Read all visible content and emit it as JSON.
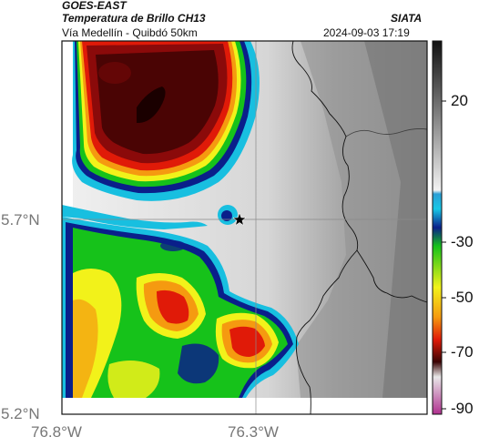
{
  "header": {
    "satellite": "GOES-EAST",
    "product": "Temperatura de Brillo CH13",
    "region": "Vía Medellín - Quibdó 50km",
    "brand": "SIATA",
    "timestamp": "2024-09-03 17:19"
  },
  "map": {
    "lat_ticks": [
      "5.7°N",
      "5.2°N"
    ],
    "lon_ticks": [
      "76.8°W",
      "76.3°W"
    ],
    "marker": "star-marker"
  },
  "colorbar": {
    "tick_labels": [
      "20",
      "-30",
      "-50",
      "-70",
      "-90"
    ],
    "colors": {
      "warm_top": "#111111",
      "warm_bottom": "#f4f4f4",
      "cyan": "#18bfe0",
      "blue": "#0a1f8a",
      "green": "#16c21a",
      "yellow": "#f2f21a",
      "orange": "#f59a10",
      "red": "#e01a08",
      "darkred": "#4a0404",
      "magenta": "#b0308f"
    }
  }
}
